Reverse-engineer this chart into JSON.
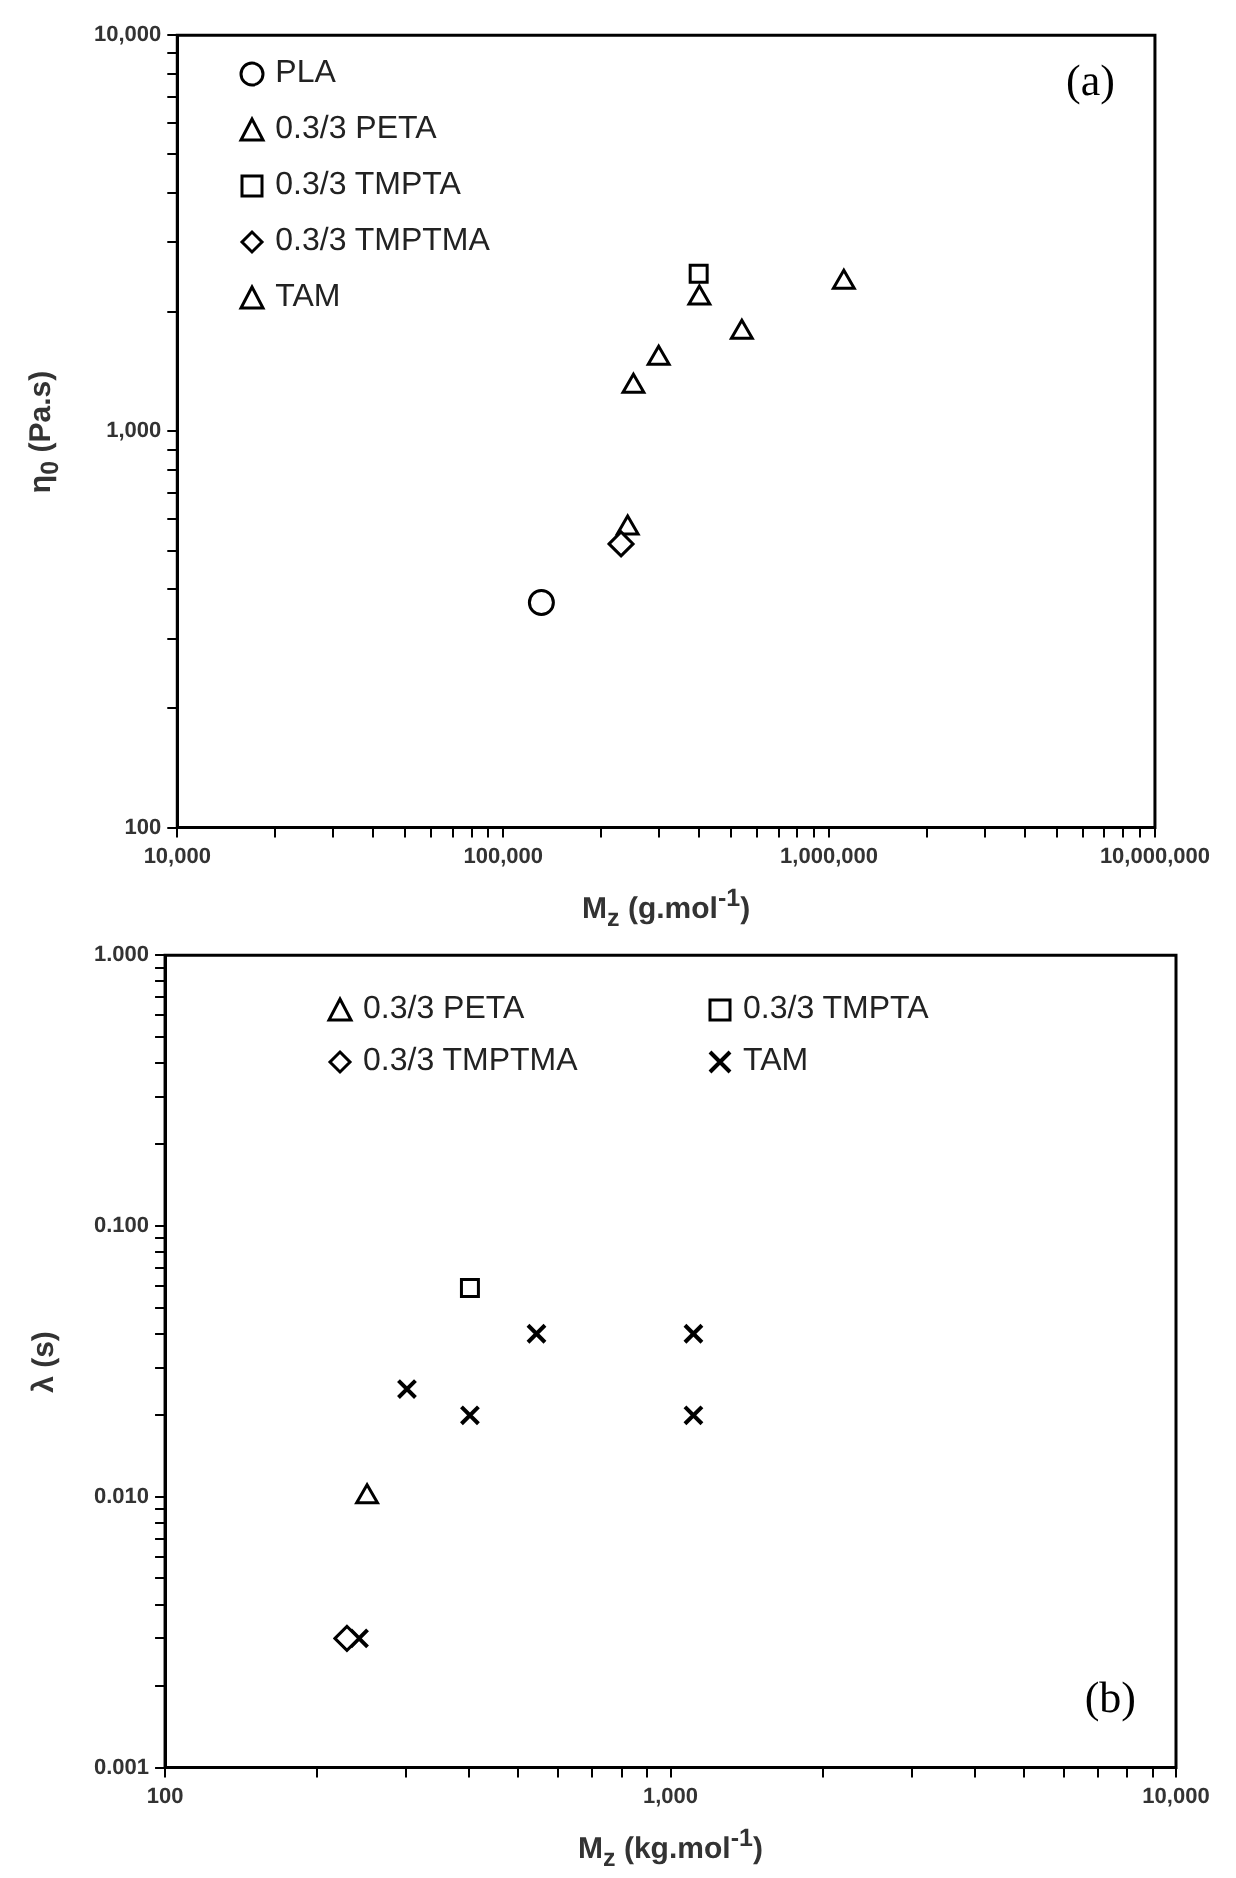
{
  "chart_data": [
    {
      "type": "scatter",
      "xlabel": "M$_{z}$ (g.mol$^{-1}$)",
      "ylabel": "η$_{0}$ (Pa.s)",
      "log": "xy",
      "grid": false,
      "legend": "top left",
      "annotations": [
        "(a)"
      ],
      "xlim": [
        10000,
        10000000
      ],
      "ylim": [
        100,
        10000
      ],
      "xticks": [
        {
          "value": 10000,
          "label": "10,000"
        },
        {
          "value": 20000,
          "label": null
        },
        {
          "value": 30000,
          "label": null
        },
        {
          "value": 40000,
          "label": null
        },
        {
          "value": 50000,
          "label": null
        },
        {
          "value": 60000,
          "label": null
        },
        {
          "value": 70000,
          "label": null
        },
        {
          "value": 80000,
          "label": null
        },
        {
          "value": 90000,
          "label": null
        },
        {
          "value": 100000,
          "label": "100,000"
        },
        {
          "value": 200000,
          "label": null
        },
        {
          "value": 300000,
          "label": null
        },
        {
          "value": 400000,
          "label": null
        },
        {
          "value": 500000,
          "label": null
        },
        {
          "value": 600000,
          "label": null
        },
        {
          "value": 700000,
          "label": null
        },
        {
          "value": 800000,
          "label": null
        },
        {
          "value": 900000,
          "label": null
        },
        {
          "value": 1000000,
          "label": "1,000,000"
        },
        {
          "value": 2000000,
          "label": null
        },
        {
          "value": 3000000,
          "label": null
        },
        {
          "value": 4000000,
          "label": null
        },
        {
          "value": 5000000,
          "label": null
        },
        {
          "value": 6000000,
          "label": null
        },
        {
          "value": 7000000,
          "label": null
        },
        {
          "value": 8000000,
          "label": null
        },
        {
          "value": 9000000,
          "label": null
        },
        {
          "value": 10000000,
          "label": "10,000,000"
        }
      ],
      "yticks": [
        100,
        {
          "value": 200,
          "label": null
        },
        {
          "value": 300,
          "label": null
        },
        {
          "value": 400,
          "label": null
        },
        {
          "value": 500,
          "label": null
        },
        {
          "value": 600,
          "label": null
        },
        {
          "value": 700,
          "label": null
        },
        {
          "value": 800,
          "label": null
        },
        {
          "value": 900,
          "label": null
        },
        {
          "value": 1000,
          "label": "1,000"
        },
        {
          "value": 2000,
          "label": null
        },
        {
          "value": 3000,
          "label": null
        },
        {
          "value": 4000,
          "label": null
        },
        {
          "value": 5000,
          "label": null
        },
        {
          "value": 6000,
          "label": null
        },
        {
          "value": 7000,
          "label": null
        },
        {
          "value": 8000,
          "label": null
        },
        {
          "value": 9000,
          "label": null
        },
        {
          "value": 10000,
          "label": "10,000"
        }
      ],
      "series": [
        {
          "name": "PLA",
          "color": "#000000",
          "marker": "circle",
          "x": [
            131000
          ],
          "values": [
            370
          ]
        },
        {
          "name": "0.3/3 PETA",
          "color": "#000000",
          "marker": "triangle",
          "x": [
            251000
          ],
          "values": [
            1300
          ]
        },
        {
          "name": "0.3/3 TMPTA",
          "color": "#000000",
          "marker": "square",
          "x": [
            398000
          ],
          "values": [
            2500
          ]
        },
        {
          "name": "0.3/3 TMPTMA",
          "color": "#000000",
          "marker": "diamond",
          "x": [
            230000
          ],
          "values": [
            520
          ]
        },
        {
          "name": "TAM",
          "color": "#000000",
          "marker": "triangle",
          "x": [
            241000,
            300000,
            400000,
            540000,
            1110000
          ],
          "values": [
            570,
            1530,
            2170,
            1780,
            2380
          ]
        }
      ]
    },
    {
      "type": "scatter",
      "xlabel": "M$_{z}$ (kg.mol$^{-1}$)",
      "ylabel": "λ (s)",
      "log": "xy",
      "grid": false,
      "legend": "top",
      "annotations": [
        "(b)"
      ],
      "xlim": [
        100,
        10000
      ],
      "ylim": [
        0.001,
        1
      ],
      "xticks": [
        100,
        {
          "value": 200,
          "label": null
        },
        {
          "value": 300,
          "label": null
        },
        {
          "value": 400,
          "label": null
        },
        {
          "value": 500,
          "label": null
        },
        {
          "value": 600,
          "label": null
        },
        {
          "value": 700,
          "label": null
        },
        {
          "value": 800,
          "label": null
        },
        {
          "value": 900,
          "label": null
        },
        {
          "value": 1000,
          "label": "1,000"
        },
        {
          "value": 2000,
          "label": null
        },
        {
          "value": 3000,
          "label": null
        },
        {
          "value": 4000,
          "label": null
        },
        {
          "value": 5000,
          "label": null
        },
        {
          "value": 6000,
          "label": null
        },
        {
          "value": 7000,
          "label": null
        },
        {
          "value": 8000,
          "label": null
        },
        {
          "value": 9000,
          "label": null
        },
        {
          "value": 10000,
          "label": "10,000"
        }
      ],
      "yticks": [
        0.001,
        {
          "value": 0.002,
          "label": null
        },
        {
          "value": 0.003,
          "label": null
        },
        {
          "value": 0.004,
          "label": null
        },
        {
          "value": 0.005,
          "label": null
        },
        {
          "value": 0.006,
          "label": null
        },
        {
          "value": 0.007,
          "label": null
        },
        {
          "value": 0.008,
          "label": null
        },
        {
          "value": 0.009,
          "label": null
        },
        {
          "value": 0.01,
          "label": "0.010"
        },
        {
          "value": 0.02,
          "label": null
        },
        {
          "value": 0.03,
          "label": null
        },
        {
          "value": 0.04,
          "label": null
        },
        {
          "value": 0.05,
          "label": null
        },
        {
          "value": 0.06,
          "label": null
        },
        {
          "value": 0.07,
          "label": null
        },
        {
          "value": 0.08,
          "label": null
        },
        {
          "value": 0.09,
          "label": null
        },
        {
          "value": 0.1,
          "label": "0.100"
        },
        {
          "value": 0.2,
          "label": null
        },
        {
          "value": 0.3,
          "label": null
        },
        {
          "value": 0.4,
          "label": null
        },
        {
          "value": 0.5,
          "label": null
        },
        {
          "value": 0.6,
          "label": null
        },
        {
          "value": 0.7,
          "label": null
        },
        {
          "value": 0.8,
          "label": null
        },
        {
          "value": 0.9,
          "label": null
        },
        {
          "value": 1,
          "label": "1.000"
        }
      ],
      "series": [
        {
          "name": "0.3/3 PETA",
          "color": "#000000",
          "marker": "triangle",
          "x": [
            251
          ],
          "values": [
            0.01
          ]
        },
        {
          "name": "0.3/3 TMPTA",
          "color": "#000000",
          "marker": "square",
          "x": [
            401
          ],
          "values": [
            0.059
          ]
        },
        {
          "name": "0.3/3 TMPTMA",
          "color": "#000000",
          "marker": "diamond",
          "x": [
            229
          ],
          "values": [
            0.003
          ]
        },
        {
          "name": "TAM",
          "color": "#000000",
          "marker": "cross",
          "x": [
            242,
            301,
            401,
            543,
            1110,
            1110
          ],
          "values": [
            0.003,
            0.025,
            0.02,
            0.04,
            0.04,
            0.02
          ]
        }
      ]
    }
  ]
}
